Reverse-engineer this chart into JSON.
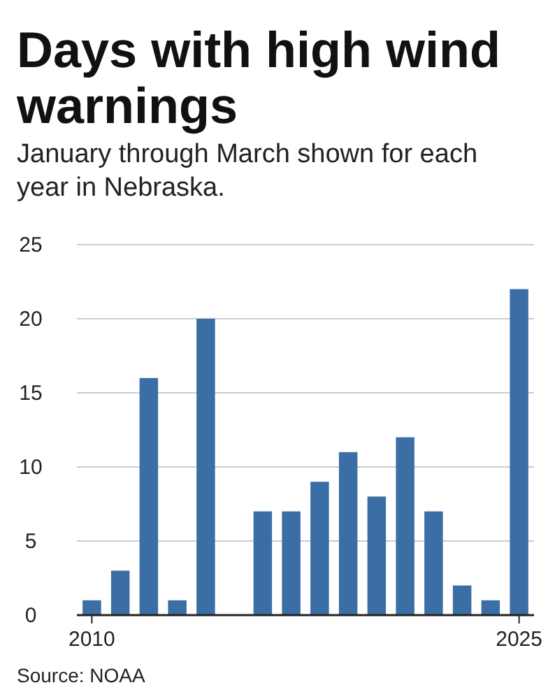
{
  "chart_data": {
    "type": "bar",
    "title": "Days with high wind warnings",
    "subtitle": "January through March shown for each year in Nebraska.",
    "categories": [
      "2010",
      null,
      null,
      null,
      null,
      null,
      null,
      null,
      null,
      null,
      null,
      null,
      null,
      null,
      null,
      "2025"
    ],
    "values": [
      1,
      3,
      16,
      1,
      20,
      0,
      7,
      7,
      9,
      11,
      8,
      12,
      7,
      2,
      1,
      22
    ],
    "color": "#3b6ea5",
    "ylim": [
      0,
      25
    ],
    "yticks": [
      0,
      5,
      10,
      15,
      20,
      25
    ],
    "grid": "y",
    "annotations": [
      "Source: NOAA"
    ]
  }
}
